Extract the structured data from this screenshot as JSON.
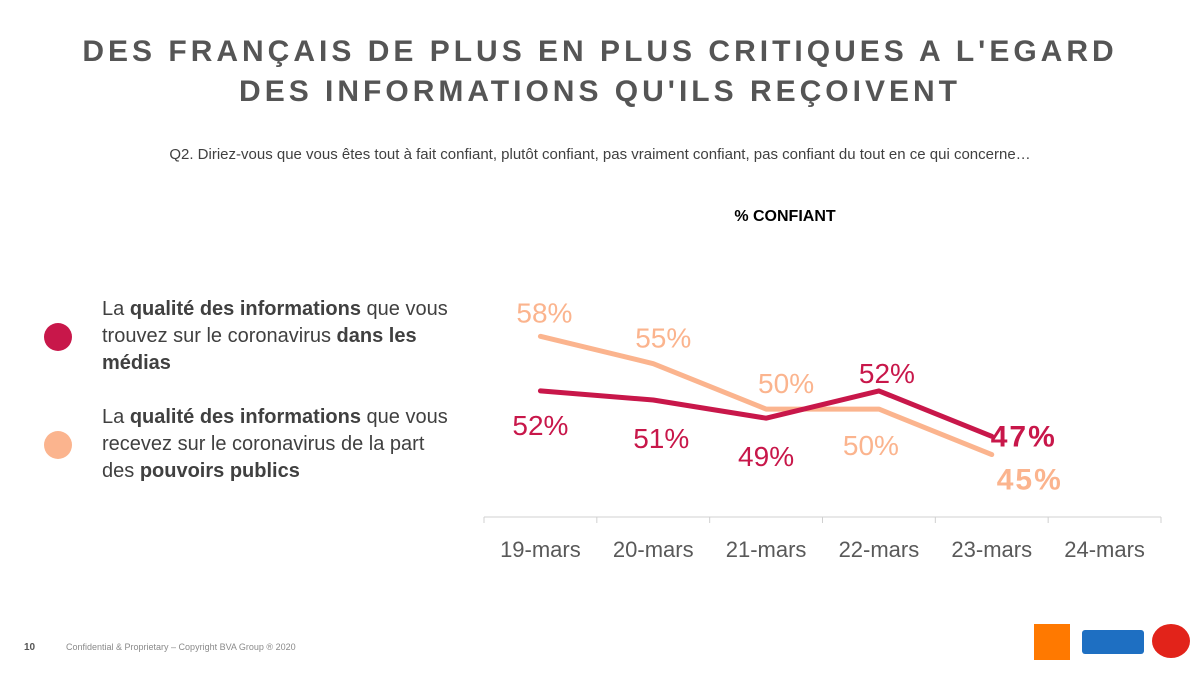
{
  "title": {
    "line1": "DES FRANÇAIS DE PLUS EN PLUS CRITIQUES A L'EGARD",
    "line2": "DES INFORMATIONS QU'ILS REÇOIVENT"
  },
  "question": "Q2. Diriez-vous que vous êtes tout à fait confiant, plutôt confiant, pas vraiment confiant, pas confiant du tout en ce qui concerne…",
  "legend": [
    {
      "parts": [
        {
          "t": "La ",
          "b": false
        },
        {
          "t": "qualité des informations",
          "b": true
        },
        {
          "t": " que vous trouvez sur le coronavirus ",
          "b": false
        },
        {
          "t": "dans les médias",
          "b": true
        }
      ]
    },
    {
      "parts": [
        {
          "t": "La ",
          "b": false
        },
        {
          "t": "qualité des informations",
          "b": true
        },
        {
          "t": " que vous recevez sur le coronavirus de la part des ",
          "b": false
        },
        {
          "t": "pouvoirs publics",
          "b": true
        }
      ]
    }
  ],
  "chart_data": {
    "type": "line",
    "ylabel": "% CONFIANT",
    "categories": [
      "19-mars",
      "20-mars",
      "21-mars",
      "22-mars",
      "23-mars",
      "24-mars"
    ],
    "ylim": [
      40,
      62
    ],
    "grid": false,
    "series": [
      {
        "color": "#c8174a",
        "values": [
          52,
          51,
          49,
          52,
          47,
          null
        ],
        "labels": [
          "52%",
          "51%",
          "49%",
          "52%",
          "47%",
          ""
        ]
      },
      {
        "color": "#fbb48e",
        "values": [
          58,
          55,
          50,
          50,
          45,
          null
        ],
        "labels": [
          "58%",
          "55%",
          "50%",
          "50%",
          "45%",
          ""
        ]
      }
    ]
  },
  "footer": {
    "page_number": "10",
    "copyright": "Confidential & Proprietary – Copyright BVA Group ® 2020"
  },
  "logos": {
    "orange": "orange",
    "europe1": "Europe 1",
    "bva": "BVA"
  },
  "colors": {
    "media": "#c8174a",
    "public": "#fbb48e",
    "orange_brand": "#ff7900",
    "europe1_brand": "#1e6fc2",
    "bva_brand": "#e2231a"
  }
}
